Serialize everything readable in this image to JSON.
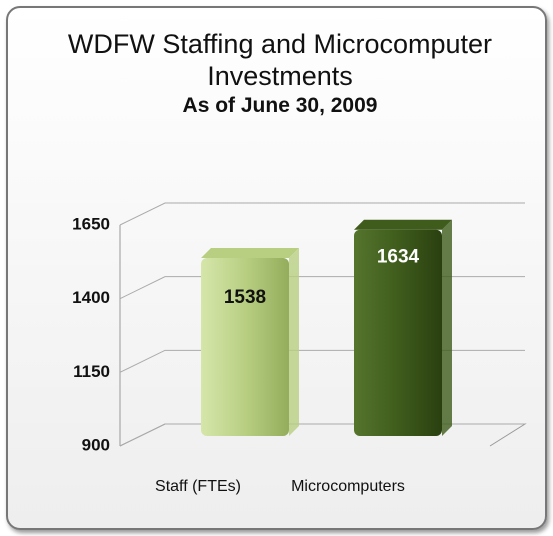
{
  "chart_data": {
    "type": "bar",
    "title": "WDFW Staffing and Microcomputer Investments",
    "subtitle": "As of June 30, 2009",
    "categories": [
      "Staff (FTEs)",
      "Microcomputers"
    ],
    "values": [
      1538,
      1634
    ],
    "colors": [
      "#b8cf82",
      "#3f5c1c"
    ],
    "ylim": [
      900,
      1650
    ],
    "yticks": [
      900,
      1150,
      1400,
      1650
    ],
    "grid": true
  }
}
